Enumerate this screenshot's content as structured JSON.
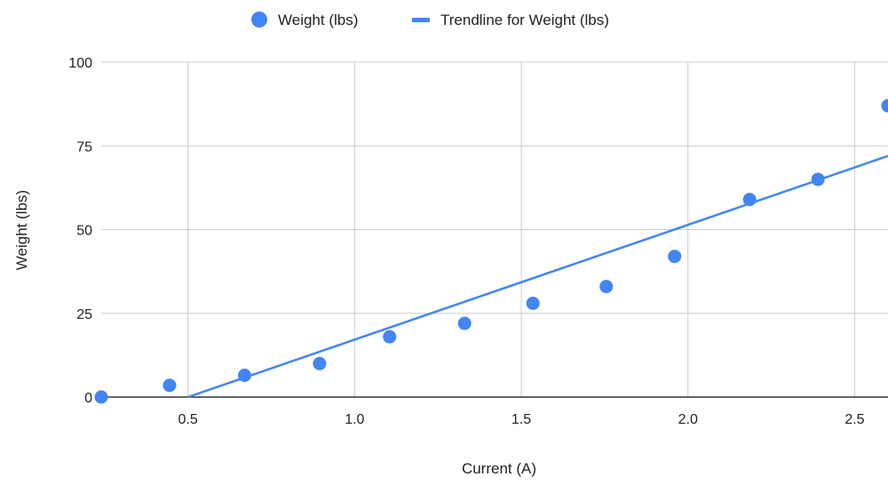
{
  "chart_data": {
    "type": "scatter",
    "title": "",
    "xlabel": "Current (A)",
    "ylabel": "Weight (lbs)",
    "xlim": [
      0.24,
      2.6
    ],
    "ylim": [
      0,
      100
    ],
    "x_ticks": [
      0.5,
      1.0,
      1.5,
      2.0,
      2.5
    ],
    "x_tick_labels": [
      "0.5",
      "1.0",
      "1.5",
      "2.0",
      "2.5"
    ],
    "y_ticks": [
      0,
      25,
      50,
      75,
      100
    ],
    "y_tick_labels": [
      "0",
      "25",
      "50",
      "75",
      "100"
    ],
    "grid": true,
    "legend_position": "top",
    "series": [
      {
        "name": "Weight (lbs)",
        "type": "scatter",
        "color": "#4285f4",
        "x": [
          0.24,
          0.445,
          0.67,
          0.895,
          1.105,
          1.33,
          1.535,
          1.755,
          1.96,
          2.185,
          2.39,
          2.6
        ],
        "y": [
          0,
          3.5,
          6.5,
          10,
          18,
          22,
          28,
          33,
          42,
          59,
          65,
          87
        ]
      },
      {
        "name": "Trendline for Weight (lbs)",
        "type": "line",
        "color": "#4285f4",
        "x": [
          0.5,
          2.6
        ],
        "y": [
          0,
          72
        ]
      }
    ]
  }
}
